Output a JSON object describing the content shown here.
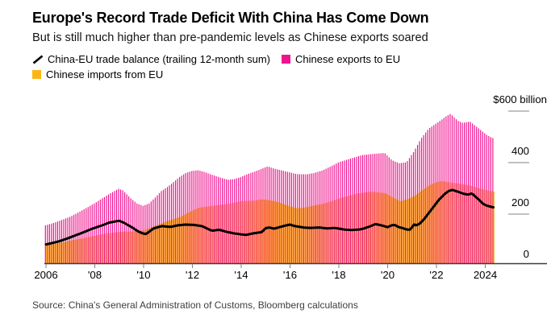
{
  "page": {
    "title": "Europe's Record Trade Deficit With China Has Come Down",
    "subtitle": "But is still much higher than pre-pandemic levels as Chinese exports soared",
    "source": "Source: China's General Administration of Customs, Bloomberg calculations"
  },
  "chart_data": {
    "type": "bar+line combo (monthly thin bars, trailing 12-month sums)",
    "title": "Europe's Record Trade Deficit With China Has Come Down",
    "subtitle": "But is still much higher than pre-pandemic levels as Chinese exports soared",
    "unit": "US$ billion",
    "x_range": [
      2006.0,
      2024.33
    ],
    "ylim": [
      0,
      620
    ],
    "grid": "off",
    "legend_position": "top-left",
    "y_axis": {
      "side": "right",
      "ticks": [
        {
          "value": 600,
          "label": "$600 billion"
        },
        {
          "value": 400,
          "label": "400"
        },
        {
          "value": 200,
          "label": "200"
        },
        {
          "value": 0,
          "label": "0"
        }
      ]
    },
    "x_axis": {
      "ticks": [
        {
          "year": 2006,
          "label": "2006"
        },
        {
          "year": 2008,
          "label": "'08"
        },
        {
          "year": 2010,
          "label": "'10"
        },
        {
          "year": 2012,
          "label": "'12"
        },
        {
          "year": 2014,
          "label": "'14"
        },
        {
          "year": 2016,
          "label": "'16"
        },
        {
          "year": 2018,
          "label": "'18"
        },
        {
          "year": 2020,
          "label": "'20"
        },
        {
          "year": 2022,
          "label": "'22"
        },
        {
          "year": 2024,
          "label": "2024"
        }
      ]
    },
    "series": [
      {
        "name": "China-EU trade balance (trailing 12-month sum)",
        "type": "line",
        "color": "#000000",
        "points": [
          [
            2006,
            73
          ],
          [
            2006.5,
            84
          ],
          [
            2006.9,
            97
          ],
          [
            2007.4,
            115
          ],
          [
            2007.9,
            134
          ],
          [
            2008.3,
            147
          ],
          [
            2008.6,
            158
          ],
          [
            2009,
            165
          ],
          [
            2009.2,
            157
          ],
          [
            2009.4,
            146
          ],
          [
            2009.6,
            135
          ],
          [
            2009.8,
            122
          ],
          [
            2010,
            115
          ],
          [
            2010.1,
            113
          ],
          [
            2010.4,
            135
          ],
          [
            2010.75,
            144
          ],
          [
            2011.1,
            141
          ],
          [
            2011.4,
            147
          ],
          [
            2011.7,
            150
          ],
          [
            2012.05,
            149
          ],
          [
            2012.4,
            144
          ],
          [
            2012.8,
            126
          ],
          [
            2013.1,
            130
          ],
          [
            2013.4,
            122
          ],
          [
            2013.7,
            116
          ],
          [
            2014,
            112
          ],
          [
            2014.2,
            110
          ],
          [
            2014.5,
            116
          ],
          [
            2014.85,
            121
          ],
          [
            2015,
            136
          ],
          [
            2015.15,
            139
          ],
          [
            2015.35,
            134
          ],
          [
            2015.6,
            141
          ],
          [
            2015.85,
            147
          ],
          [
            2016,
            150
          ],
          [
            2016.2,
            144
          ],
          [
            2016.35,
            142
          ],
          [
            2016.6,
            138
          ],
          [
            2016.85,
            137
          ],
          [
            2017.2,
            139
          ],
          [
            2017.5,
            135
          ],
          [
            2017.85,
            137
          ],
          [
            2018.2,
            131
          ],
          [
            2018.5,
            129
          ],
          [
            2018.85,
            131
          ],
          [
            2019,
            134
          ],
          [
            2019.3,
            144
          ],
          [
            2019.5,
            152
          ],
          [
            2019.75,
            147
          ],
          [
            2020,
            140
          ],
          [
            2020.15,
            147
          ],
          [
            2020.3,
            149
          ],
          [
            2020.45,
            140
          ],
          [
            2020.6,
            137
          ],
          [
            2020.75,
            132
          ],
          [
            2020.9,
            129
          ],
          [
            2021,
            140
          ],
          [
            2021.05,
            152
          ],
          [
            2021.15,
            147
          ],
          [
            2021.3,
            152
          ],
          [
            2021.5,
            172
          ],
          [
            2021.8,
            209
          ],
          [
            2022.1,
            246
          ],
          [
            2022.35,
            270
          ],
          [
            2022.5,
            280
          ],
          [
            2022.65,
            285
          ],
          [
            2022.8,
            280
          ],
          [
            2022.9,
            277
          ],
          [
            2023.1,
            270
          ],
          [
            2023.3,
            266
          ],
          [
            2023.45,
            272
          ],
          [
            2023.6,
            258
          ],
          [
            2023.75,
            246
          ],
          [
            2023.9,
            231
          ],
          [
            2024.05,
            224
          ],
          [
            2024.2,
            220
          ],
          [
            2024.33,
            217
          ]
        ]
      },
      {
        "name": "Chinese exports to EU",
        "type": "bar",
        "color": "#F0138D",
        "points": [
          [
            2006,
            147
          ],
          [
            2006.33,
            156
          ],
          [
            2006.67,
            168
          ],
          [
            2007,
            180
          ],
          [
            2007.33,
            196
          ],
          [
            2007.67,
            214
          ],
          [
            2008,
            232
          ],
          [
            2008.33,
            252
          ],
          [
            2008.67,
            272
          ],
          [
            2009,
            289
          ],
          [
            2009.17,
            283
          ],
          [
            2009.33,
            268
          ],
          [
            2009.5,
            252
          ],
          [
            2009.75,
            232
          ],
          [
            2010,
            223
          ],
          [
            2010.25,
            232
          ],
          [
            2010.5,
            255
          ],
          [
            2010.75,
            280
          ],
          [
            2011,
            296
          ],
          [
            2011.25,
            315
          ],
          [
            2011.5,
            335
          ],
          [
            2011.75,
            350
          ],
          [
            2012,
            358
          ],
          [
            2012.25,
            361
          ],
          [
            2012.5,
            355
          ],
          [
            2012.75,
            346
          ],
          [
            2013,
            338
          ],
          [
            2013.25,
            330
          ],
          [
            2013.5,
            324
          ],
          [
            2013.75,
            327
          ],
          [
            2014,
            334
          ],
          [
            2014.25,
            345
          ],
          [
            2014.5,
            353
          ],
          [
            2014.75,
            362
          ],
          [
            2015.1,
            376
          ],
          [
            2015.35,
            368
          ],
          [
            2015.7,
            360
          ],
          [
            2016,
            353
          ],
          [
            2016.3,
            346
          ],
          [
            2016.7,
            345
          ],
          [
            2017,
            350
          ],
          [
            2017.35,
            360
          ],
          [
            2017.7,
            376
          ],
          [
            2018,
            391
          ],
          [
            2018.35,
            402
          ],
          [
            2018.7,
            412
          ],
          [
            2019,
            420
          ],
          [
            2019.4,
            424
          ],
          [
            2019.9,
            428
          ],
          [
            2020.2,
            400
          ],
          [
            2020.5,
            388
          ],
          [
            2020.8,
            392
          ],
          [
            2021.1,
            434
          ],
          [
            2021.4,
            485
          ],
          [
            2021.7,
            522
          ],
          [
            2022.1,
            548
          ],
          [
            2022.4,
            569
          ],
          [
            2022.6,
            580
          ],
          [
            2022.9,
            553
          ],
          [
            2023.1,
            545
          ],
          [
            2023.4,
            550
          ],
          [
            2023.6,
            535
          ],
          [
            2023.9,
            512
          ],
          [
            2024.1,
            497
          ],
          [
            2024.33,
            486
          ]
        ]
      },
      {
        "name": "Chinese imports from EU",
        "type": "bar",
        "color": "#FDB515",
        "points": [
          [
            2006,
            69
          ],
          [
            2006.5,
            78
          ],
          [
            2007,
            88
          ],
          [
            2007.5,
            97
          ],
          [
            2008,
            107
          ],
          [
            2008.5,
            116
          ],
          [
            2009,
            122
          ],
          [
            2009.5,
            123
          ],
          [
            2010,
            128
          ],
          [
            2010.5,
            147
          ],
          [
            2011,
            165
          ],
          [
            2011.5,
            180
          ],
          [
            2011.75,
            193
          ],
          [
            2012,
            205
          ],
          [
            2012.25,
            215
          ],
          [
            2012.5,
            219
          ],
          [
            2013,
            225
          ],
          [
            2013.5,
            231
          ],
          [
            2014,
            241
          ],
          [
            2014.5,
            243
          ],
          [
            2014.8,
            248
          ],
          [
            2015,
            246
          ],
          [
            2015.4,
            240
          ],
          [
            2015.7,
            230
          ],
          [
            2016,
            220
          ],
          [
            2016.3,
            213
          ],
          [
            2016.7,
            218
          ],
          [
            2017,
            225
          ],
          [
            2017.35,
            231
          ],
          [
            2017.7,
            241
          ],
          [
            2018,
            251
          ],
          [
            2018.4,
            262
          ],
          [
            2018.7,
            270
          ],
          [
            2019,
            274
          ],
          [
            2019.3,
            278
          ],
          [
            2019.9,
            272
          ],
          [
            2020.2,
            255
          ],
          [
            2020.5,
            241
          ],
          [
            2020.8,
            248
          ],
          [
            2021.1,
            262
          ],
          [
            2021.4,
            283
          ],
          [
            2021.7,
            303
          ],
          [
            2022,
            315
          ],
          [
            2022.2,
            319
          ],
          [
            2022.6,
            313
          ],
          [
            2023,
            307
          ],
          [
            2023.3,
            303
          ],
          [
            2023.6,
            295
          ],
          [
            2023.85,
            288
          ],
          [
            2024.1,
            282
          ],
          [
            2024.33,
            278
          ]
        ]
      }
    ]
  }
}
